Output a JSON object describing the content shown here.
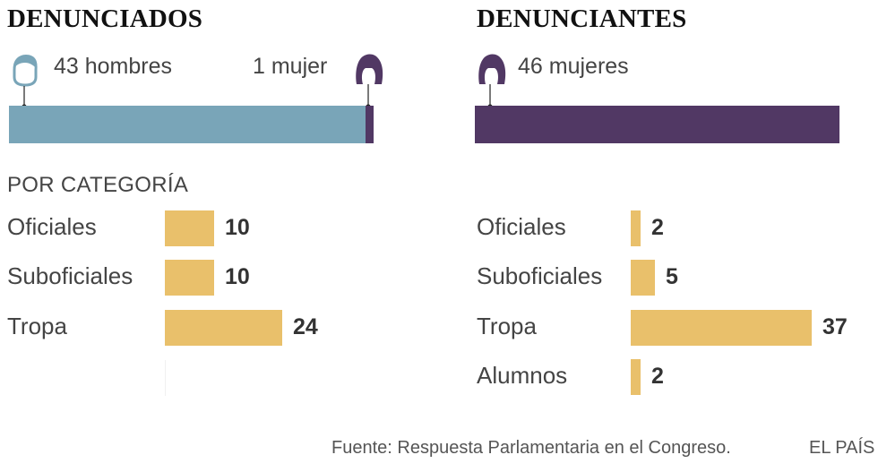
{
  "colors": {
    "men": "#79a5b8",
    "women": "#513864",
    "category_bar": "#e9c06b",
    "text": "#444444"
  },
  "left": {
    "title": "DENUNCIADOS",
    "men_label": "43 hombres",
    "women_label": "1 mujer",
    "men_icon": "man-head-icon",
    "women_icon": "woman-head-icon"
  },
  "right": {
    "title": "DENUNCIANTES",
    "women_label": "46 mujeres",
    "women_icon": "woman-head-icon"
  },
  "category_heading": "POR CATEGORÍA",
  "footer": {
    "source": "Fuente: Respuesta Parlamentaria en el Congreso.",
    "brand": "EL PAÍS"
  },
  "chart_data": [
    {
      "type": "bar",
      "title": "DENUNCIADOS",
      "orientation": "horizontal",
      "stacked": true,
      "categories": [
        "hombres",
        "mujer"
      ],
      "values": [
        43,
        1
      ]
    },
    {
      "type": "bar",
      "title": "DENUNCIANTES",
      "orientation": "horizontal",
      "categories": [
        "mujeres"
      ],
      "values": [
        46
      ]
    },
    {
      "type": "bar",
      "title": "DENUNCIADOS",
      "subtitle": "POR CATEGORÍA",
      "orientation": "horizontal",
      "categories": [
        "Oficiales",
        "Suboficiales",
        "Tropa"
      ],
      "values": [
        10,
        10,
        24
      ]
    },
    {
      "type": "bar",
      "title": "DENUNCIANTES",
      "subtitle": "POR CATEGORÍA",
      "orientation": "horizontal",
      "categories": [
        "Oficiales",
        "Suboficiales",
        "Tropa",
        "Alumnos"
      ],
      "values": [
        2,
        5,
        37,
        2
      ]
    }
  ]
}
